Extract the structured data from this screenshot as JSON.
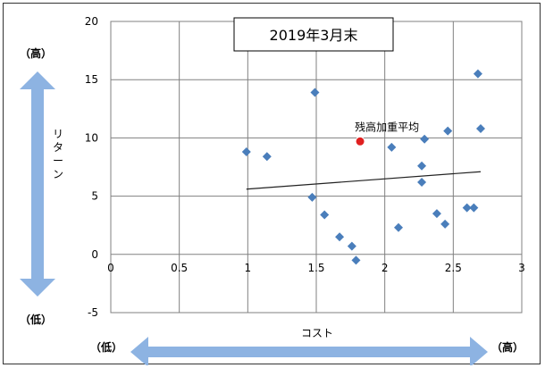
{
  "chart_data": {
    "type": "scatter",
    "title": "2019年3月末",
    "xlabel": "コスト",
    "ylabel": "リターン",
    "xlim": [
      0,
      3
    ],
    "ylim": [
      -5,
      20
    ],
    "x_ticks": [
      "0",
      "0.5",
      "1",
      "1.5",
      "2",
      "2.5",
      "3"
    ],
    "y_ticks": [
      "-5",
      "0",
      "5",
      "10",
      "15",
      "20"
    ],
    "grid": true,
    "x_axis_low": "（低）",
    "x_axis_high": "（高）",
    "y_axis_high": "（高）",
    "y_axis_low": "（低）",
    "marker_color": "#4a7ebb",
    "highlight_color": "#e02020",
    "arrow_color": "#8db3e2",
    "series": [
      {
        "points": [
          {
            "x": 0.99,
            "y": 8.8
          },
          {
            "x": 1.14,
            "y": 8.4
          },
          {
            "x": 1.47,
            "y": 4.9
          },
          {
            "x": 1.49,
            "y": 13.9
          },
          {
            "x": 1.56,
            "y": 3.4
          },
          {
            "x": 1.67,
            "y": 1.5
          },
          {
            "x": 1.76,
            "y": 0.7
          },
          {
            "x": 1.79,
            "y": -0.5
          },
          {
            "x": 2.05,
            "y": 9.2
          },
          {
            "x": 2.1,
            "y": 2.3
          },
          {
            "x": 2.27,
            "y": 7.6
          },
          {
            "x": 2.27,
            "y": 6.2
          },
          {
            "x": 2.29,
            "y": 9.9
          },
          {
            "x": 2.38,
            "y": 3.5
          },
          {
            "x": 2.44,
            "y": 2.6
          },
          {
            "x": 2.46,
            "y": 10.6
          },
          {
            "x": 2.6,
            "y": 4.0
          },
          {
            "x": 2.65,
            "y": 4.0
          },
          {
            "x": 2.68,
            "y": 15.5
          },
          {
            "x": 2.7,
            "y": 10.8
          }
        ]
      }
    ],
    "highlight": {
      "label": "残高加重平均",
      "x": 1.82,
      "y": 9.7
    },
    "trendline": {
      "x": [
        0.99,
        2.7
      ],
      "y": [
        5.6,
        7.1
      ]
    }
  }
}
